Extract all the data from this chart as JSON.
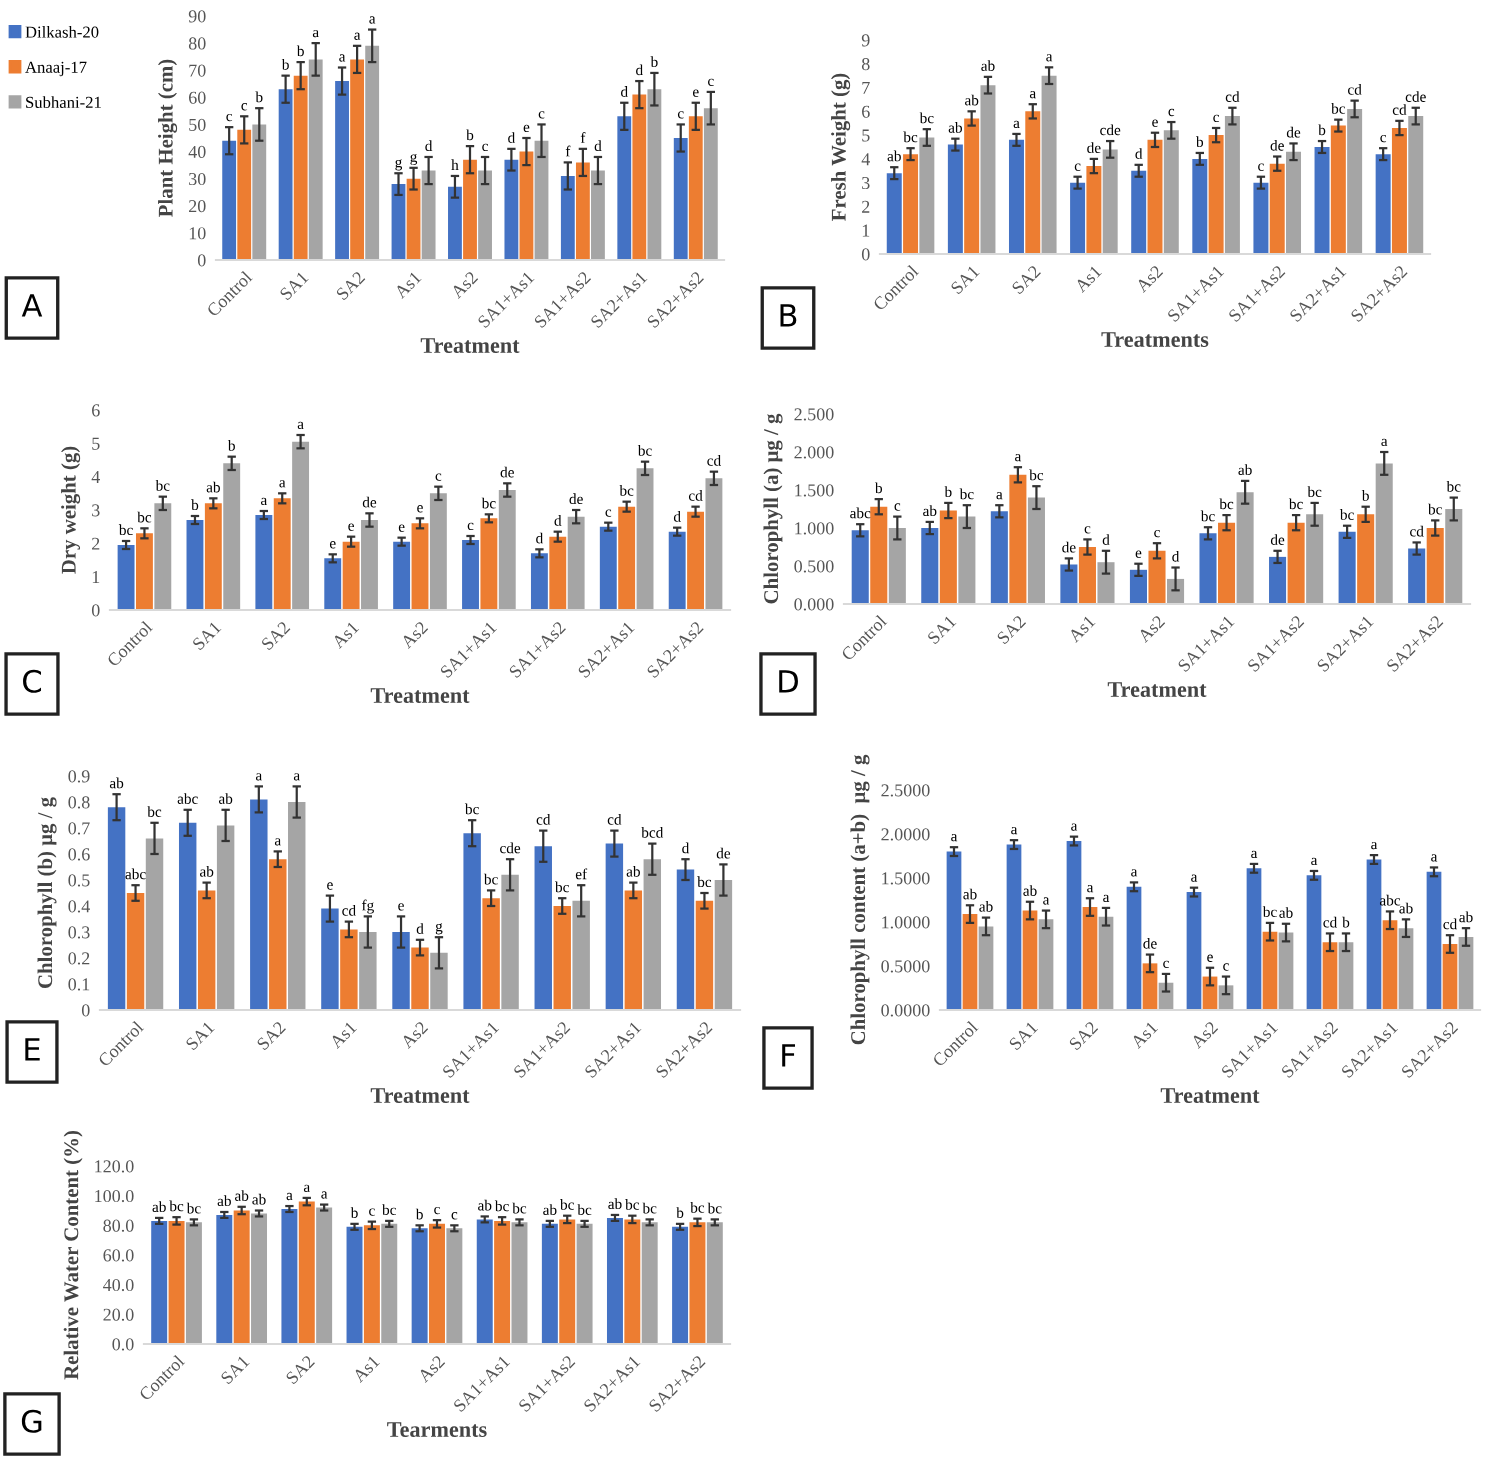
{
  "chart_data": [
    {
      "type": "bar",
      "ylabel": "Plant Height (cm)",
      "xlabel": "Treatment",
      "annotations": [
        "A"
      ],
      "legend": "left",
      "categories": [
        "Control",
        "SA1",
        "SA2",
        "As1",
        "As2",
        "SA1+As1",
        "SA1+As2",
        "SA2+As1",
        "SA2+As2"
      ],
      "ylim": [
        0,
        90
      ],
      "yticks": [
        0,
        10,
        20,
        30,
        40,
        50,
        60,
        70,
        80,
        90
      ],
      "series": [
        {
          "name": "Dilkash-20",
          "color": "#4472c4",
          "values": [
            44,
            63,
            66,
            28,
            27,
            37,
            31,
            53,
            45
          ],
          "errors": [
            5,
            5,
            5,
            4,
            4,
            4,
            5,
            5,
            5
          ],
          "value_labels": [
            "c",
            "b",
            "a",
            "g",
            "h",
            "d",
            "f",
            "d",
            "c"
          ]
        },
        {
          "name": "Anaaj-17",
          "color": "#ed7d31",
          "values": [
            48,
            68,
            74,
            30,
            37,
            40,
            36,
            61,
            53
          ],
          "errors": [
            5,
            5,
            5,
            4,
            5,
            5,
            5,
            5,
            5
          ],
          "value_labels": [
            "c",
            "b",
            "a",
            "g",
            "b",
            "e",
            "f",
            "d",
            "e"
          ]
        },
        {
          "name": "Subhani-21",
          "color": "#a5a5a5",
          "values": [
            50,
            74,
            79,
            33,
            33,
            44,
            33,
            63,
            56
          ],
          "errors": [
            6,
            6,
            6,
            5,
            5,
            6,
            5,
            6,
            6
          ],
          "value_labels": [
            "b",
            "a",
            "a",
            "d",
            "c",
            "c",
            "d",
            "b",
            "c"
          ]
        }
      ]
    },
    {
      "type": "bar",
      "ylabel": "Fresh Weight (g)",
      "xlabel": "Treatments",
      "annotations": [
        "B"
      ],
      "categories": [
        "Control",
        "SA1",
        "SA2",
        "As1",
        "As2",
        "SA1+As1",
        "SA1+As2",
        "SA2+As1",
        "SA2+As2"
      ],
      "ylim": [
        0,
        9
      ],
      "yticks": [
        0,
        1,
        2,
        3,
        4,
        5,
        6,
        7,
        8,
        9
      ],
      "series": [
        {
          "color": "#4472c4",
          "values": [
            3.4,
            4.6,
            4.8,
            3.0,
            3.5,
            4.0,
            3.0,
            4.5,
            4.2
          ],
          "errors": [
            0.25,
            0.25,
            0.25,
            0.25,
            0.25,
            0.25,
            0.25,
            0.25,
            0.25
          ],
          "value_labels": [
            "ab",
            "ab",
            "a",
            "c",
            "d",
            "b",
            "c",
            "b",
            "c"
          ]
        },
        {
          "color": "#ed7d31",
          "values": [
            4.2,
            5.7,
            6.0,
            3.7,
            4.8,
            5.0,
            3.8,
            5.4,
            5.3
          ],
          "errors": [
            0.25,
            0.3,
            0.3,
            0.3,
            0.3,
            0.3,
            0.3,
            0.25,
            0.3
          ],
          "value_labels": [
            "bc",
            "ab",
            "a",
            "de",
            "e",
            "c",
            "de",
            "bc",
            "cd"
          ]
        },
        {
          "color": "#a5a5a5",
          "values": [
            4.9,
            7.1,
            7.5,
            4.4,
            5.2,
            5.8,
            4.3,
            6.1,
            5.8
          ],
          "errors": [
            0.35,
            0.35,
            0.35,
            0.35,
            0.35,
            0.35,
            0.35,
            0.35,
            0.35
          ],
          "value_labels": [
            "bc",
            "ab",
            "a",
            "cde",
            "c",
            "cd",
            "de",
            "cd",
            "cde"
          ]
        }
      ]
    },
    {
      "type": "bar",
      "ylabel": "Dry weight (g)",
      "xlabel": "Treatment",
      "annotations": [
        "C"
      ],
      "categories": [
        "Control",
        "SA1",
        "SA2",
        "As1",
        "As2",
        "SA1+As1",
        "SA1+As2",
        "SA2+As1",
        "SA2+As2"
      ],
      "ylim": [
        0,
        6
      ],
      "yticks": [
        0,
        1,
        2,
        3,
        4,
        5,
        6
      ],
      "series": [
        {
          "color": "#4472c4",
          "values": [
            1.95,
            2.7,
            2.85,
            1.55,
            2.05,
            2.1,
            1.7,
            2.5,
            2.35
          ],
          "errors": [
            0.12,
            0.12,
            0.12,
            0.12,
            0.12,
            0.12,
            0.12,
            0.12,
            0.12
          ],
          "value_labels": [
            "bc",
            "b",
            "a",
            "e",
            "e",
            "c",
            "d",
            "c",
            "d"
          ]
        },
        {
          "color": "#ed7d31",
          "values": [
            2.3,
            3.2,
            3.35,
            2.05,
            2.6,
            2.75,
            2.2,
            3.1,
            2.95
          ],
          "errors": [
            0.15,
            0.15,
            0.15,
            0.15,
            0.15,
            0.12,
            0.15,
            0.15,
            0.15
          ],
          "value_labels": [
            "bc",
            "ab",
            "a",
            "e",
            "e",
            "bc",
            "d",
            "bc",
            "cd"
          ]
        },
        {
          "color": "#a5a5a5",
          "values": [
            3.2,
            4.4,
            5.05,
            2.7,
            3.5,
            3.6,
            2.8,
            4.25,
            3.95
          ],
          "errors": [
            0.2,
            0.2,
            0.2,
            0.2,
            0.2,
            0.2,
            0.2,
            0.2,
            0.2
          ],
          "value_labels": [
            "bc",
            "b",
            "a",
            "de",
            "c",
            "de",
            "de",
            "bc",
            "cd"
          ]
        }
      ]
    },
    {
      "type": "bar",
      "ylabel": "Chlorophyll (a) μg / g",
      "xlabel": "Treatment",
      "annotations": [
        "D"
      ],
      "categories": [
        "Control",
        "SA1",
        "SA2",
        "As1",
        "As2",
        "SA1+As1",
        "SA1+As2",
        "SA2+As1",
        "SA2+As2"
      ],
      "ylim": [
        0,
        2.5
      ],
      "yticks": [
        {
          "value": 0,
          "label": "0.000"
        },
        {
          "value": 0.5,
          "label": "0.500"
        },
        {
          "value": 1,
          "label": "1.000"
        },
        {
          "value": 1.5,
          "label": "1.500"
        },
        {
          "value": 2,
          "label": "2.000"
        },
        {
          "value": 2.5,
          "label": "2.500"
        }
      ],
      "series": [
        {
          "color": "#4472c4",
          "values": [
            0.97,
            1.0,
            1.22,
            0.52,
            0.45,
            0.93,
            0.62,
            0.95,
            0.73
          ],
          "errors": [
            0.08,
            0.08,
            0.08,
            0.08,
            0.08,
            0.08,
            0.08,
            0.08,
            0.08
          ],
          "value_labels": [
            "abc",
            "ab",
            "a",
            "de",
            "e",
            "bc",
            "de",
            "bc",
            "cd"
          ]
        },
        {
          "color": "#ed7d31",
          "values": [
            1.28,
            1.23,
            1.7,
            0.75,
            0.7,
            1.07,
            1.07,
            1.18,
            1.0
          ],
          "errors": [
            0.1,
            0.1,
            0.1,
            0.1,
            0.1,
            0.1,
            0.1,
            0.1,
            0.1
          ],
          "value_labels": [
            "b",
            "b",
            "a",
            "c",
            "c",
            "bc",
            "bc",
            "b",
            "bc"
          ]
        },
        {
          "color": "#a5a5a5",
          "values": [
            1.0,
            1.15,
            1.4,
            0.55,
            0.33,
            1.47,
            1.18,
            1.85,
            1.25
          ],
          "errors": [
            0.15,
            0.15,
            0.15,
            0.15,
            0.15,
            0.15,
            0.15,
            0.15,
            0.15
          ],
          "value_labels": [
            "c",
            "bc",
            "bc",
            "d",
            "d",
            "ab",
            "bc",
            "a",
            "bc"
          ]
        }
      ]
    },
    {
      "type": "bar",
      "ylabel": "Chlorophyll (b) μg / g",
      "xlabel": "Treatment",
      "annotations": [
        "E"
      ],
      "categories": [
        "Control",
        "SA1",
        "SA2",
        "As1",
        "As2",
        "SA1+As1",
        "SA1+As2",
        "SA2+As1",
        "SA2+As2"
      ],
      "ylim": [
        0,
        0.9
      ],
      "yticks": [
        0,
        0.1,
        0.2,
        0.3,
        0.4,
        0.5,
        0.6,
        0.7,
        0.8,
        0.9
      ],
      "series": [
        {
          "color": "#4472c4",
          "values": [
            0.78,
            0.72,
            0.81,
            0.39,
            0.3,
            0.68,
            0.63,
            0.64,
            0.54
          ],
          "errors": [
            0.05,
            0.05,
            0.05,
            0.05,
            0.06,
            0.05,
            0.06,
            0.05,
            0.04
          ],
          "value_labels": [
            "ab",
            "abc",
            "a",
            "e",
            "e",
            "bc",
            "cd",
            "cd",
            "d"
          ]
        },
        {
          "color": "#ed7d31",
          "values": [
            0.45,
            0.46,
            0.58,
            0.31,
            0.24,
            0.43,
            0.4,
            0.46,
            0.42
          ],
          "errors": [
            0.03,
            0.03,
            0.03,
            0.03,
            0.03,
            0.03,
            0.03,
            0.03,
            0.03
          ],
          "value_labels": [
            "abc",
            "ab",
            "a",
            "cd",
            "d",
            "bc",
            "bc",
            "ab",
            "bc"
          ]
        },
        {
          "color": "#a5a5a5",
          "values": [
            0.66,
            0.71,
            0.8,
            0.3,
            0.22,
            0.52,
            0.42,
            0.58,
            0.5
          ],
          "errors": [
            0.06,
            0.06,
            0.06,
            0.06,
            0.06,
            0.06,
            0.06,
            0.06,
            0.06
          ],
          "value_labels": [
            "bc",
            "ab",
            "a",
            "fg",
            "g",
            "cde",
            "ef",
            "bcd",
            "de"
          ]
        }
      ]
    },
    {
      "type": "bar",
      "ylabel": "Chlorophyll content (a+b)  μg / g",
      "xlabel": "Treatment",
      "annotations": [
        "F"
      ],
      "categories": [
        "Control",
        "SA1",
        "SA2",
        "As1",
        "As2",
        "SA1+As1",
        "SA1+As2",
        "SA2+As1",
        "SA2+As2"
      ],
      "ylim": [
        0,
        2.5
      ],
      "yticks": [
        {
          "value": 0,
          "label": "0.0000"
        },
        {
          "value": 0.5,
          "label": "0.5000"
        },
        {
          "value": 1,
          "label": "1.0000"
        },
        {
          "value": 1.5,
          "label": "1.5000"
        },
        {
          "value": 2,
          "label": "2.0000"
        },
        {
          "value": 2.5,
          "label": "2.5000"
        }
      ],
      "series": [
        {
          "color": "#4472c4",
          "values": [
            1.8,
            1.88,
            1.92,
            1.4,
            1.34,
            1.61,
            1.53,
            1.71,
            1.57
          ],
          "errors": [
            0.05,
            0.05,
            0.05,
            0.05,
            0.05,
            0.05,
            0.05,
            0.05,
            0.05
          ],
          "value_labels": [
            "a",
            "a",
            "a",
            "a",
            "a",
            "a",
            "a",
            "a",
            "a"
          ]
        },
        {
          "color": "#ed7d31",
          "values": [
            1.09,
            1.13,
            1.17,
            0.53,
            0.38,
            0.89,
            0.77,
            1.02,
            0.75
          ],
          "errors": [
            0.1,
            0.1,
            0.1,
            0.1,
            0.1,
            0.1,
            0.1,
            0.1,
            0.1
          ],
          "value_labels": [
            "ab",
            "ab",
            "a",
            "de",
            "e",
            "bc",
            "cd",
            "abc",
            "cd"
          ]
        },
        {
          "color": "#a5a5a5",
          "values": [
            0.95,
            1.03,
            1.06,
            0.31,
            0.28,
            0.88,
            0.77,
            0.93,
            0.83
          ],
          "errors": [
            0.1,
            0.1,
            0.1,
            0.1,
            0.1,
            0.1,
            0.1,
            0.1,
            0.1
          ],
          "value_labels": [
            "ab",
            "a",
            "a",
            "c",
            "c",
            "ab",
            "b",
            "ab",
            "ab"
          ]
        }
      ]
    },
    {
      "type": "bar",
      "ylabel": "Relative Water Content (%)",
      "xlabel": "Tearments",
      "annotations": [
        "G"
      ],
      "categories": [
        "Control",
        "SA1",
        "SA2",
        "As1",
        "As2",
        "SA1+As1",
        "SA1+As2",
        "SA2+As1",
        "SA2+As2"
      ],
      "ylim": [
        0,
        120
      ],
      "yticks": [
        {
          "value": 0,
          "label": "0.0"
        },
        {
          "value": 20,
          "label": "20.0"
        },
        {
          "value": 40,
          "label": "40.0"
        },
        {
          "value": 60,
          "label": "60.0"
        },
        {
          "value": 80,
          "label": "80.0"
        },
        {
          "value": 100,
          "label": "100.0"
        },
        {
          "value": 120,
          "label": "120.0"
        }
      ],
      "series": [
        {
          "color": "#4472c4",
          "values": [
            83,
            87,
            91,
            79,
            78,
            84,
            81,
            85,
            79
          ],
          "errors": [
            2,
            2,
            2,
            2,
            2,
            2,
            2,
            2,
            2
          ],
          "value_labels": [
            "ab",
            "ab",
            "a",
            "b",
            "b",
            "ab",
            "ab",
            "ab",
            "b"
          ]
        },
        {
          "color": "#ed7d31",
          "values": [
            83,
            90,
            96,
            80,
            81,
            83,
            84,
            84,
            82
          ],
          "errors": [
            2.5,
            2.5,
            2.5,
            2.5,
            2.5,
            2.5,
            2.5,
            2.5,
            2.5
          ],
          "value_labels": [
            "bc",
            "ab",
            "a",
            "c",
            "c",
            "bc",
            "bc",
            "bc",
            "bc"
          ]
        },
        {
          "color": "#a5a5a5",
          "values": [
            82,
            88,
            92,
            81,
            78,
            82,
            81,
            82,
            82
          ],
          "errors": [
            2,
            2,
            2,
            2,
            2,
            2,
            2,
            2,
            2
          ],
          "value_labels": [
            "bc",
            "ab",
            "a",
            "bc",
            "c",
            "bc",
            "bc",
            "bc",
            "bc"
          ]
        }
      ]
    }
  ]
}
